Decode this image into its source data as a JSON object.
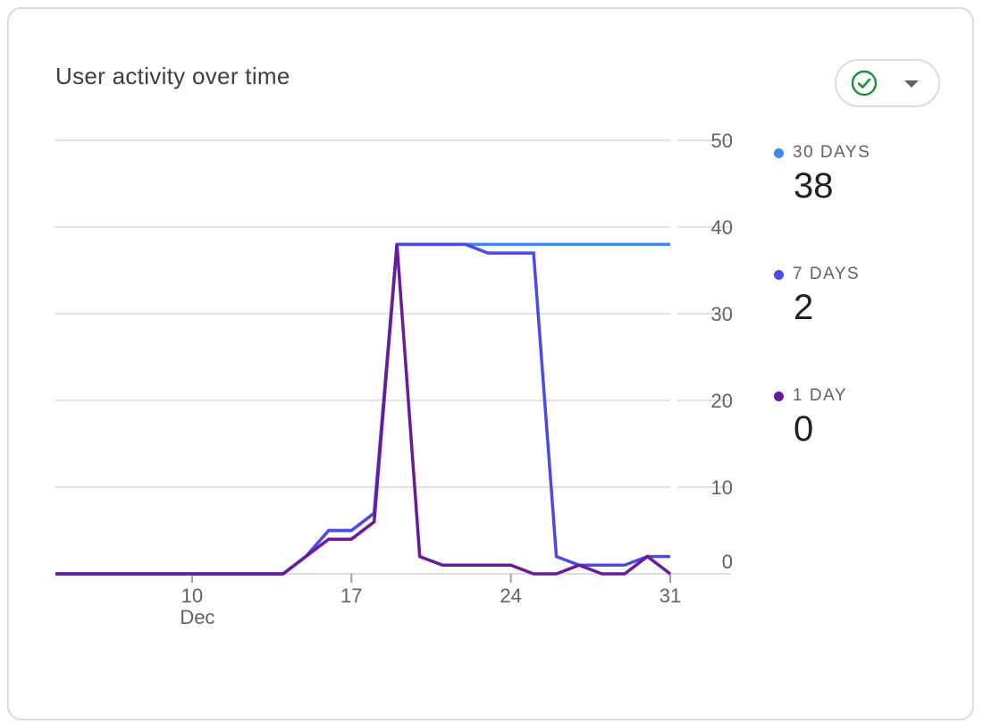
{
  "card": {
    "title": "User activity over time",
    "filter": {
      "icon": "check-circle-icon",
      "caret_icon": "caret-down-icon",
      "accent": "#1e8e3e"
    }
  },
  "legend": [
    {
      "label": "30 DAYS",
      "value": "38",
      "color": "#4285f4"
    },
    {
      "label": "7 DAYS",
      "value": "2",
      "color": "#4b4be6"
    },
    {
      "label": "1 DAY",
      "value": "0",
      "color": "#6a1b9a"
    }
  ],
  "chart_data": {
    "type": "line",
    "title": "User activity over time",
    "xlabel": "",
    "ylabel": "",
    "x_tick_labels": [
      "10",
      "17",
      "24",
      "31"
    ],
    "x_sub_label": "Dec",
    "y_ticks": [
      0,
      10,
      20,
      30,
      40,
      50
    ],
    "ylim": [
      0,
      50
    ],
    "xlim": [
      "2023-12-04",
      "2023-12-31"
    ],
    "grid": true,
    "legend_position": "right",
    "x": [
      "2023-12-04",
      "2023-12-05",
      "2023-12-06",
      "2023-12-07",
      "2023-12-08",
      "2023-12-09",
      "2023-12-10",
      "2023-12-11",
      "2023-12-12",
      "2023-12-13",
      "2023-12-14",
      "2023-12-15",
      "2023-12-16",
      "2023-12-17",
      "2023-12-18",
      "2023-12-19",
      "2023-12-20",
      "2023-12-21",
      "2023-12-22",
      "2023-12-23",
      "2023-12-24",
      "2023-12-25",
      "2023-12-26",
      "2023-12-27",
      "2023-12-28",
      "2023-12-29",
      "2023-12-30",
      "2023-12-31"
    ],
    "series": [
      {
        "name": "30 DAYS",
        "color": "#4285f4",
        "values": [
          0,
          0,
          0,
          0,
          0,
          0,
          0,
          0,
          0,
          0,
          0,
          2,
          5,
          5,
          7,
          38,
          38,
          38,
          38,
          38,
          38,
          38,
          38,
          38,
          38,
          38,
          38,
          38
        ]
      },
      {
        "name": "7 DAYS",
        "color": "#4b4be6",
        "values": [
          0,
          0,
          0,
          0,
          0,
          0,
          0,
          0,
          0,
          0,
          0,
          2,
          5,
          5,
          7,
          38,
          38,
          38,
          38,
          37,
          37,
          37,
          2,
          1,
          1,
          1,
          2,
          2
        ]
      },
      {
        "name": "1 DAY",
        "color": "#6a1b9a",
        "values": [
          0,
          0,
          0,
          0,
          0,
          0,
          0,
          0,
          0,
          0,
          0,
          2,
          4,
          4,
          6,
          38,
          2,
          1,
          1,
          1,
          1,
          0,
          0,
          1,
          0,
          0,
          2,
          0
        ]
      }
    ]
  }
}
